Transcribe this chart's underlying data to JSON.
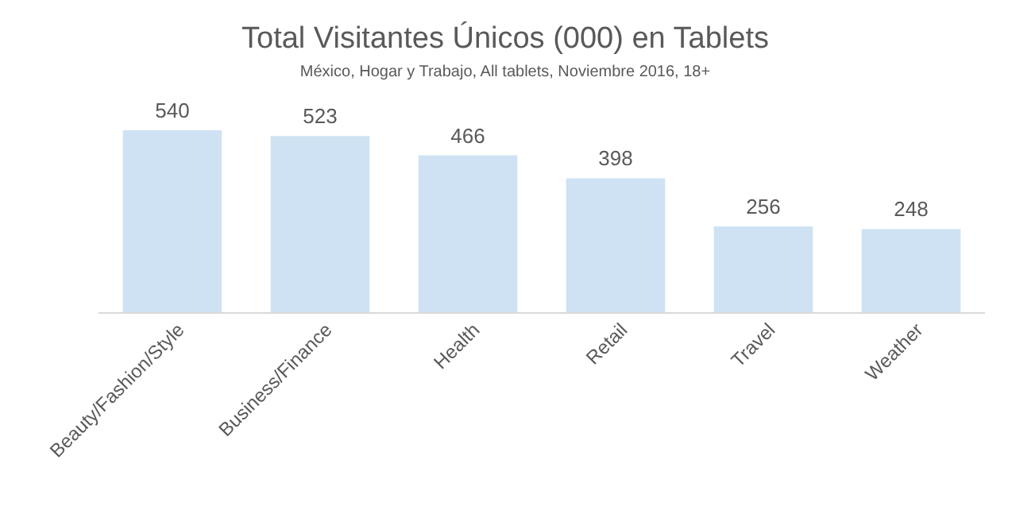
{
  "chart_data": {
    "type": "bar",
    "title": "Total Visitantes Únicos (000) en Tablets",
    "subtitle": "México, Hogar y Trabajo, All tablets,  Noviembre 2016, 18+",
    "categories": [
      "Beauty/Fashion/Style",
      "Business/Finance",
      "Health",
      "Retail",
      "Travel",
      "Weather"
    ],
    "values": [
      540,
      523,
      466,
      398,
      256,
      248
    ],
    "color": "#cfe2f3",
    "data_labels": true
  }
}
